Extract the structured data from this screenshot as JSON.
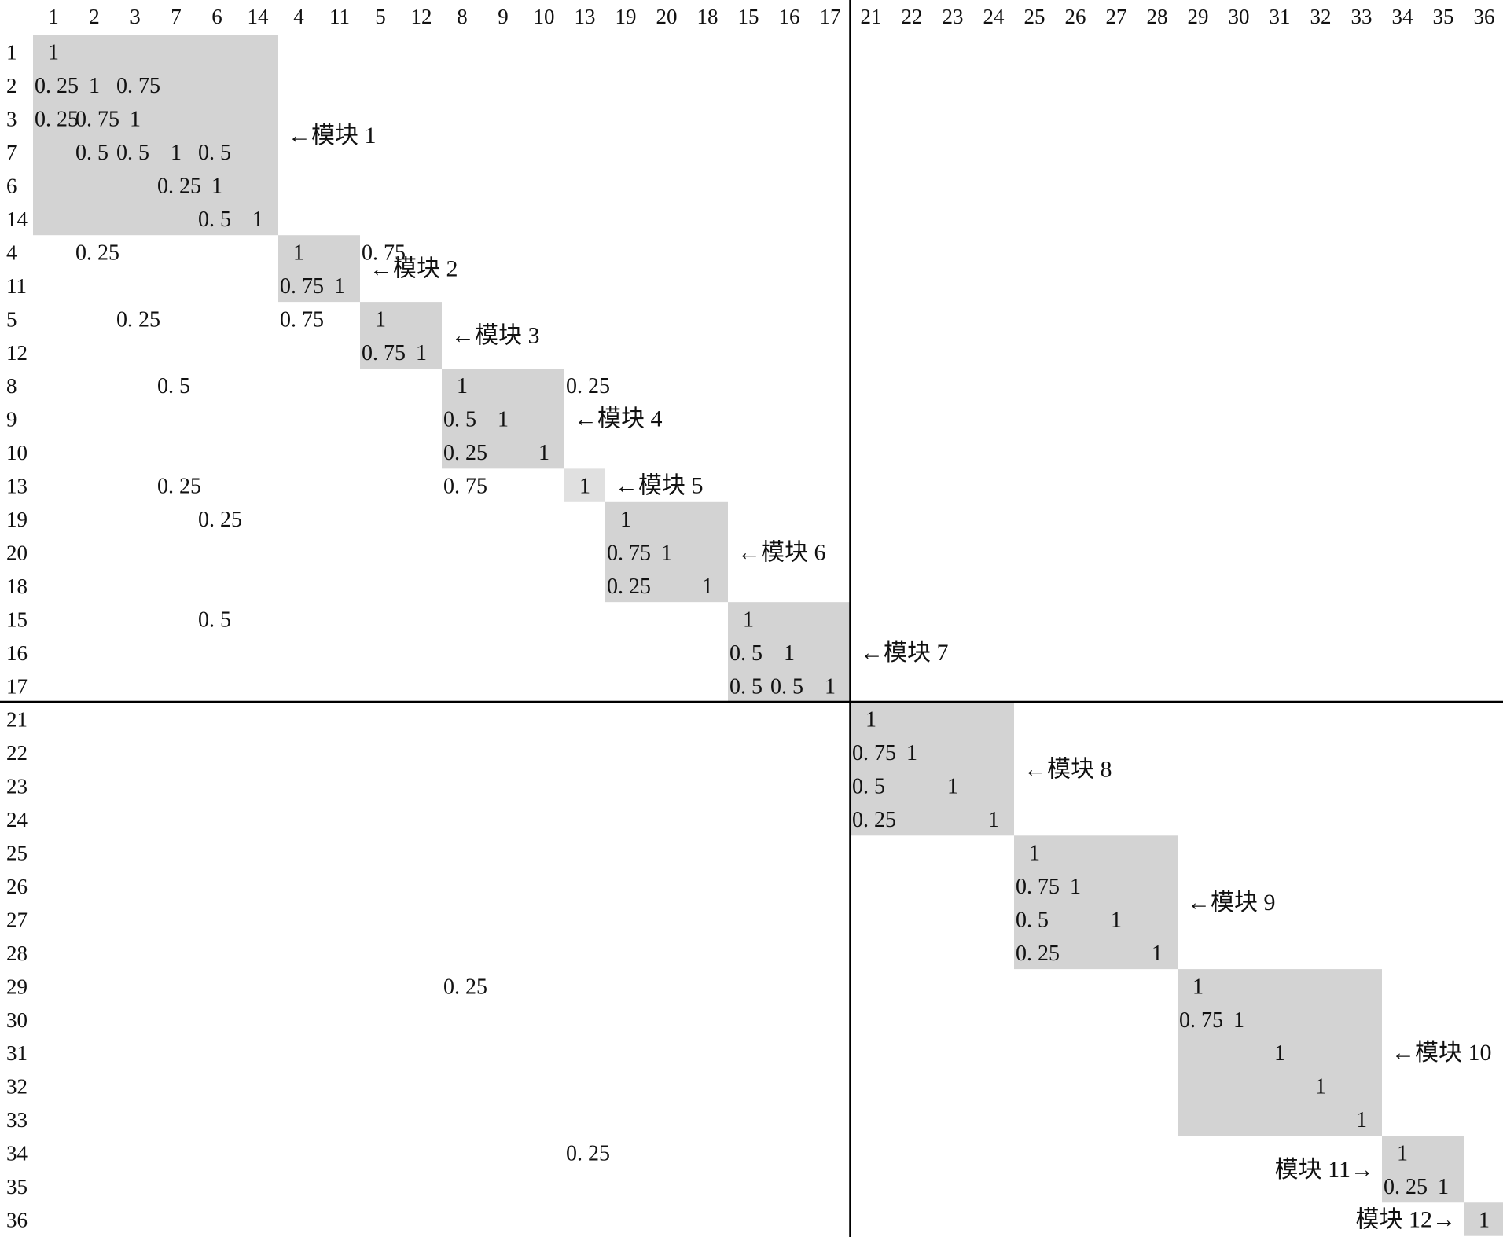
{
  "diagram": {
    "type": "table",
    "column_order": [
      "1",
      "2",
      "3",
      "7",
      "6",
      "14",
      "4",
      "11",
      "5",
      "12",
      "8",
      "9",
      "10",
      "13",
      "19",
      "20",
      "18",
      "15",
      "16",
      "17",
      "21",
      "22",
      "23",
      "24",
      "25",
      "26",
      "27",
      "28",
      "29",
      "30",
      "31",
      "32",
      "33",
      "34",
      "35",
      "36"
    ],
    "row_order": [
      "1",
      "2",
      "3",
      "7",
      "6",
      "14",
      "4",
      "11",
      "5",
      "12",
      "8",
      "9",
      "10",
      "13",
      "19",
      "20",
      "18",
      "15",
      "16",
      "17",
      "21",
      "22",
      "23",
      "24",
      "25",
      "26",
      "27",
      "28",
      "29",
      "30",
      "31",
      "32",
      "33",
      "34",
      "35",
      "36"
    ],
    "shade_color": "#d3d3d3",
    "shade_color_light": "#e0e0e0",
    "line_color": "#000000",
    "modules": [
      {
        "label": "←模块 1",
        "start": 0,
        "end": 5
      },
      {
        "label": "←模块 2",
        "start": 6,
        "end": 7
      },
      {
        "label": "←模块 3",
        "start": 8,
        "end": 9
      },
      {
        "label": "←模块 4",
        "start": 10,
        "end": 12
      },
      {
        "label": "←模块 5",
        "start": 13,
        "end": 13
      },
      {
        "label": "←模块 6",
        "start": 14,
        "end": 16
      },
      {
        "label": "←模块 7",
        "start": 17,
        "end": 19
      },
      {
        "label": "←模块 8",
        "start": 20,
        "end": 23
      },
      {
        "label": "←模块 9",
        "start": 24,
        "end": 27
      },
      {
        "label": "←模块 10",
        "start": 28,
        "end": 32
      },
      {
        "label": "模块 11→",
        "start": 33,
        "end": 34
      },
      {
        "label": "模块 12→",
        "start": 35,
        "end": 35
      }
    ],
    "cells": [
      {
        "row": 0,
        "col": 0,
        "value": "1"
      },
      {
        "row": 1,
        "col": 0,
        "value": "0. 25"
      },
      {
        "row": 1,
        "col": 1,
        "value": "1"
      },
      {
        "row": 1,
        "col": 2,
        "value": "0. 75"
      },
      {
        "row": 2,
        "col": 0,
        "value": "0. 25"
      },
      {
        "row": 2,
        "col": 1,
        "value": "0. 75"
      },
      {
        "row": 2,
        "col": 2,
        "value": "1"
      },
      {
        "row": 3,
        "col": 1,
        "value": "0. 5"
      },
      {
        "row": 3,
        "col": 2,
        "value": "0. 5"
      },
      {
        "row": 3,
        "col": 3,
        "value": "1"
      },
      {
        "row": 3,
        "col": 4,
        "value": "0. 5"
      },
      {
        "row": 4,
        "col": 3,
        "value": "0. 25"
      },
      {
        "row": 4,
        "col": 4,
        "value": "1"
      },
      {
        "row": 5,
        "col": 4,
        "value": "0. 5"
      },
      {
        "row": 5,
        "col": 5,
        "value": "1"
      },
      {
        "row": 6,
        "col": 1,
        "value": "0. 25"
      },
      {
        "row": 6,
        "col": 6,
        "value": "1"
      },
      {
        "row": 6,
        "col": 8,
        "value": "0. 75"
      },
      {
        "row": 7,
        "col": 6,
        "value": "0. 75"
      },
      {
        "row": 7,
        "col": 7,
        "value": "1"
      },
      {
        "row": 8,
        "col": 2,
        "value": "0. 25"
      },
      {
        "row": 8,
        "col": 6,
        "value": "0. 75"
      },
      {
        "row": 8,
        "col": 8,
        "value": "1"
      },
      {
        "row": 9,
        "col": 8,
        "value": "0. 75"
      },
      {
        "row": 9,
        "col": 9,
        "value": "1"
      },
      {
        "row": 10,
        "col": 3,
        "value": "0. 5"
      },
      {
        "row": 10,
        "col": 10,
        "value": "1"
      },
      {
        "row": 10,
        "col": 13,
        "value": "0. 25"
      },
      {
        "row": 11,
        "col": 10,
        "value": "0. 5"
      },
      {
        "row": 11,
        "col": 11,
        "value": "1"
      },
      {
        "row": 12,
        "col": 10,
        "value": "0. 25"
      },
      {
        "row": 12,
        "col": 12,
        "value": "1"
      },
      {
        "row": 13,
        "col": 3,
        "value": "0. 25"
      },
      {
        "row": 13,
        "col": 10,
        "value": "0. 75"
      },
      {
        "row": 13,
        "col": 13,
        "value": "1"
      },
      {
        "row": 14,
        "col": 4,
        "value": "0. 25"
      },
      {
        "row": 14,
        "col": 14,
        "value": "1"
      },
      {
        "row": 15,
        "col": 14,
        "value": "0. 75"
      },
      {
        "row": 15,
        "col": 15,
        "value": "1"
      },
      {
        "row": 16,
        "col": 14,
        "value": "0. 25"
      },
      {
        "row": 16,
        "col": 16,
        "value": "1"
      },
      {
        "row": 17,
        "col": 4,
        "value": "0. 5"
      },
      {
        "row": 17,
        "col": 17,
        "value": "1"
      },
      {
        "row": 18,
        "col": 17,
        "value": "0. 5"
      },
      {
        "row": 18,
        "col": 18,
        "value": "1"
      },
      {
        "row": 19,
        "col": 17,
        "value": "0. 5"
      },
      {
        "row": 19,
        "col": 18,
        "value": "0. 5"
      },
      {
        "row": 19,
        "col": 19,
        "value": "1"
      },
      {
        "row": 20,
        "col": 20,
        "value": "1"
      },
      {
        "row": 21,
        "col": 20,
        "value": "0. 75"
      },
      {
        "row": 21,
        "col": 21,
        "value": "1"
      },
      {
        "row": 22,
        "col": 20,
        "value": "0. 5"
      },
      {
        "row": 22,
        "col": 22,
        "value": "1"
      },
      {
        "row": 23,
        "col": 20,
        "value": "0. 25"
      },
      {
        "row": 23,
        "col": 23,
        "value": "1"
      },
      {
        "row": 24,
        "col": 24,
        "value": "1"
      },
      {
        "row": 25,
        "col": 24,
        "value": "0. 75"
      },
      {
        "row": 25,
        "col": 25,
        "value": "1"
      },
      {
        "row": 26,
        "col": 24,
        "value": "0. 5"
      },
      {
        "row": 26,
        "col": 26,
        "value": "1"
      },
      {
        "row": 27,
        "col": 24,
        "value": "0. 25"
      },
      {
        "row": 27,
        "col": 27,
        "value": "1"
      },
      {
        "row": 28,
        "col": 10,
        "value": "0. 25"
      },
      {
        "row": 28,
        "col": 28,
        "value": "1"
      },
      {
        "row": 29,
        "col": 28,
        "value": "0. 75"
      },
      {
        "row": 29,
        "col": 29,
        "value": "1"
      },
      {
        "row": 30,
        "col": 30,
        "value": "1"
      },
      {
        "row": 31,
        "col": 31,
        "value": "1"
      },
      {
        "row": 32,
        "col": 32,
        "value": "1"
      },
      {
        "row": 33,
        "col": 13,
        "value": "0. 25"
      },
      {
        "row": 33,
        "col": 33,
        "value": "1"
      },
      {
        "row": 34,
        "col": 33,
        "value": "0. 25"
      },
      {
        "row": 34,
        "col": 34,
        "value": "1"
      },
      {
        "row": 35,
        "col": 35,
        "value": "1"
      }
    ]
  }
}
